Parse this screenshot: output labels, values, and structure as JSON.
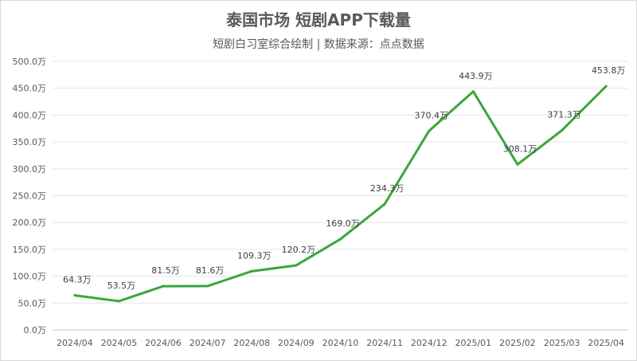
{
  "chart_data": {
    "type": "line",
    "title": "泰国市场 短剧APP下载量",
    "subtitle": "短剧白习室综合绘制 | 数据来源：点点数据",
    "categories": [
      "2024/04",
      "2024/05",
      "2024/06",
      "2024/07",
      "2024/08",
      "2024/09",
      "2024/10",
      "2024/11",
      "2024/12",
      "2025/01",
      "2025/02",
      "2025/03",
      "2025/04"
    ],
    "series": [
      {
        "name": "下载量",
        "values": [
          64.3,
          53.5,
          81.5,
          81.6,
          109.3,
          120.2,
          169.0,
          234.3,
          370.4,
          443.9,
          308.1,
          371.3,
          453.8
        ],
        "color": "#3aa63a"
      }
    ],
    "value_suffix": "万",
    "ylim": [
      0,
      500
    ],
    "yticks": [
      "0.0万",
      "50.0万",
      "100.0万",
      "150.0万",
      "200.0万",
      "250.0万",
      "300.0万",
      "350.0万",
      "400.0万",
      "450.0万",
      "500.0万"
    ],
    "grid": true,
    "legend": "none"
  }
}
